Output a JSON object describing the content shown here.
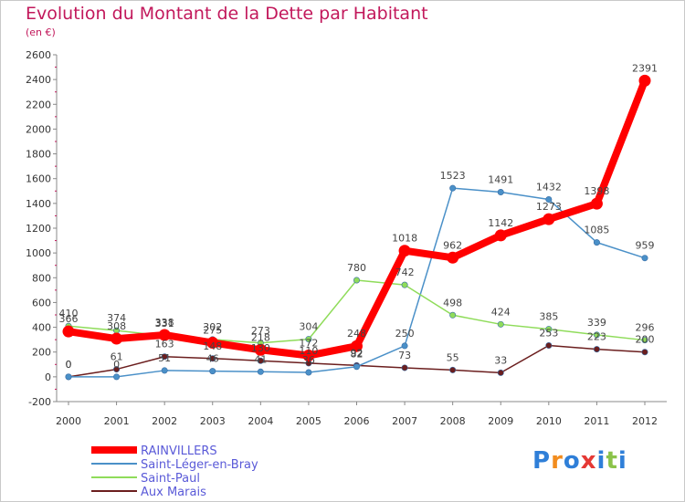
{
  "header": {
    "title": "Evolution du Montant de la Dette par Habitant",
    "subtitle": "(en €)"
  },
  "chart_data": {
    "type": "line",
    "title": "Evolution du Montant de la Dette par Habitant",
    "subtitle": "(en €)",
    "xlabel": "",
    "ylabel": "",
    "x": [
      2000,
      2001,
      2002,
      2003,
      2004,
      2005,
      2006,
      2007,
      2008,
      2009,
      2010,
      2011,
      2012
    ],
    "x_tick_labels": [
      "2000",
      "2001",
      "2002",
      "2003",
      "2004",
      "2005",
      "2006",
      "2007",
      "2008",
      "2009",
      "2010",
      "2011",
      "2012"
    ],
    "ylim": [
      -200,
      2600
    ],
    "yticks": [
      -200,
      0,
      200,
      400,
      600,
      800,
      1000,
      1200,
      1400,
      1600,
      1800,
      2000,
      2200,
      2400,
      2600
    ],
    "y_tick_labels": [
      "-200",
      "0",
      "200",
      "400",
      "600",
      "800",
      "1000",
      "1200",
      "1400",
      "1600",
      "1800",
      "2000",
      "2200",
      "2400",
      "2600"
    ],
    "grid": false,
    "legend_position": "bottom-left",
    "series": [
      {
        "name": "RAINVILLERS",
        "color": "#ff0000",
        "values": [
          366,
          308,
          338,
          275,
          218,
          172,
          248,
          1018,
          962,
          1142,
          1273,
          1398,
          2391
        ],
        "labels": [
          "366",
          "308",
          "338",
          "275",
          "218",
          "172",
          "248",
          "1018",
          "962",
          "1142",
          "1273",
          "1398",
          "2391"
        ]
      },
      {
        "name": "Saint-Léger-en-Bray",
        "color": "#4a90c8",
        "values": [
          0,
          0,
          51,
          46,
          41,
          36,
          82,
          250,
          1523,
          1491,
          1432,
          1085,
          959
        ],
        "labels": [
          "0",
          "0",
          "51",
          "46",
          "41",
          "36",
          "82",
          "250",
          "1523",
          "1491",
          "1432",
          "1085",
          "959"
        ]
      },
      {
        "name": "Saint-Paul",
        "color": "#8fdc5a",
        "values": [
          410,
          374,
          331,
          302,
          273,
          304,
          780,
          742,
          498,
          424,
          385,
          339,
          296
        ],
        "labels": [
          "410",
          "374",
          "331",
          "302",
          "273",
          "304",
          "780",
          "742",
          "498",
          "424",
          "385",
          "339",
          "296"
        ]
      },
      {
        "name": "Aux Marais",
        "color": "#6b1e1e",
        "values": [
          0,
          61,
          163,
          148,
          130,
          110,
          92,
          73,
          55,
          33,
          253,
          223,
          200
        ],
        "labels": [
          "0",
          "61",
          "163",
          "148",
          "130",
          "110",
          "92",
          "73",
          "55",
          "33",
          "253",
          "223",
          "200"
        ]
      }
    ]
  },
  "legend": {
    "items": [
      "RAINVILLERS",
      "Saint-Léger-en-Bray",
      "Saint-Paul",
      "Aux Marais"
    ]
  },
  "brand": {
    "logo_text": "Proxiti",
    "letter_colors": [
      "#2f7fd8",
      "#f28c1e",
      "#2f7fd8",
      "#e53935",
      "#2f7fd8",
      "#8bc34a",
      "#2f7fd8"
    ]
  }
}
